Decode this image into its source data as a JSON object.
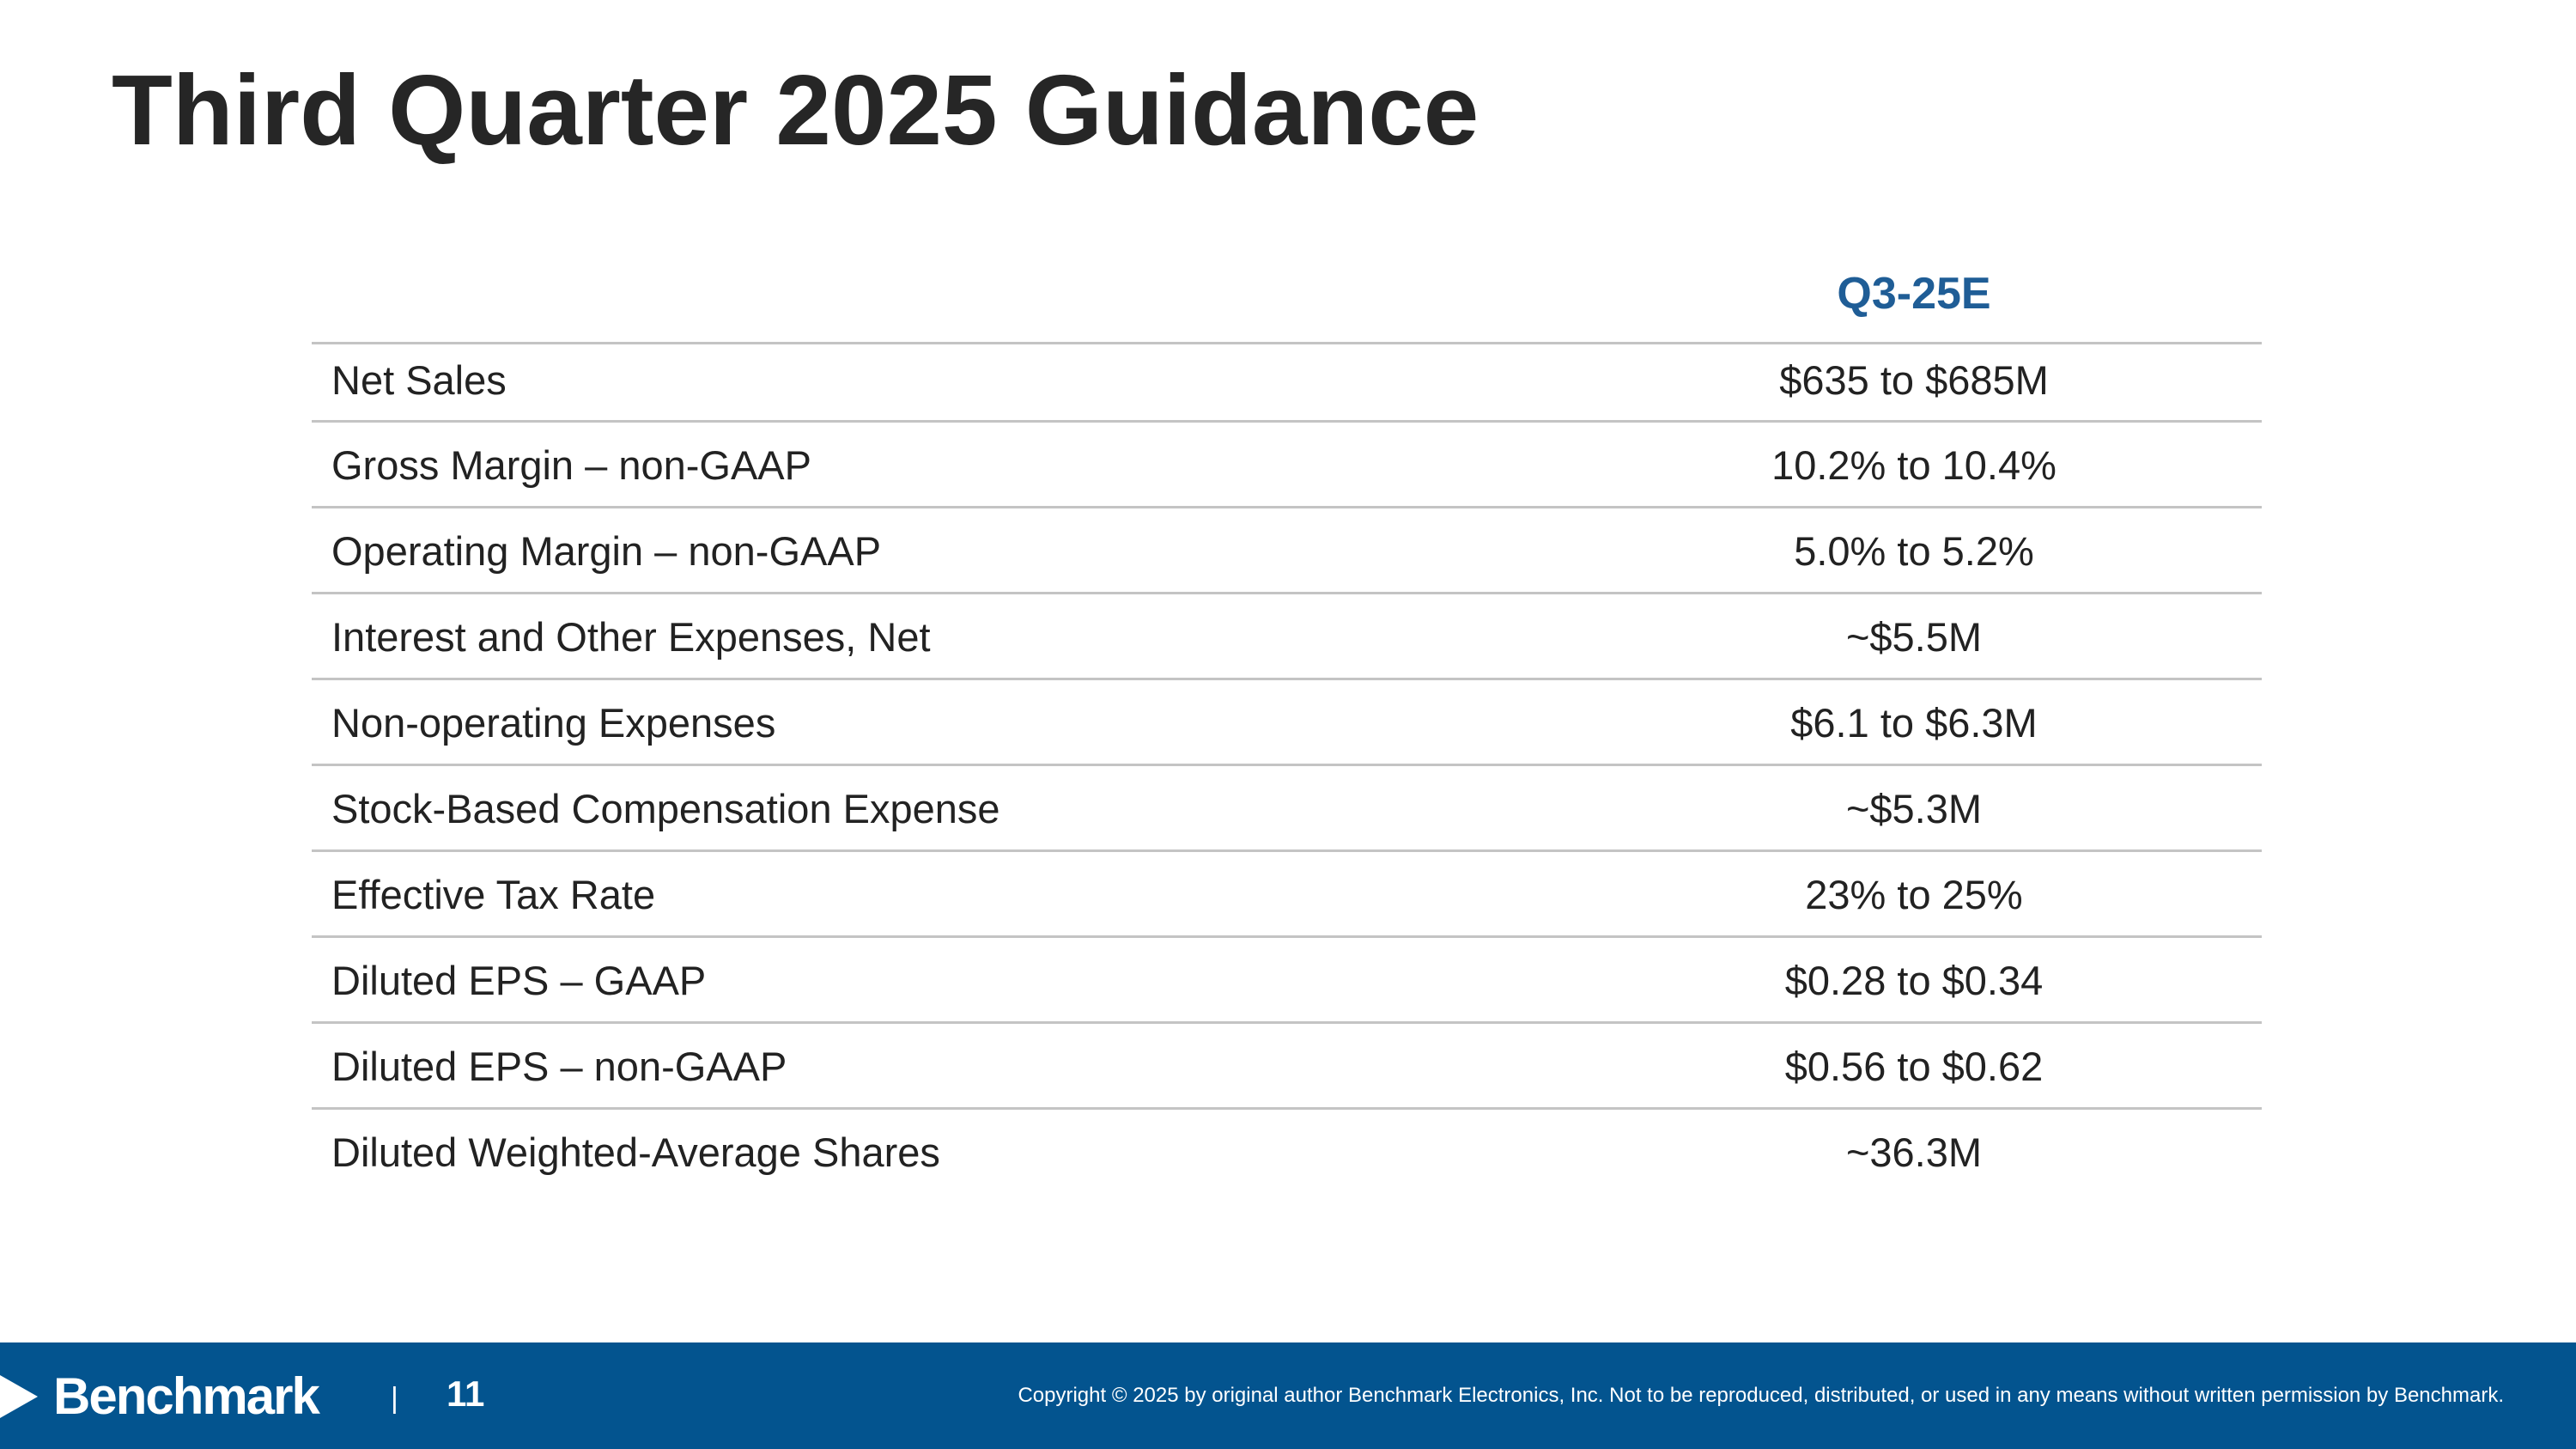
{
  "header": {
    "title": "Third Quarter 2025 Guidance"
  },
  "table": {
    "columns": [
      "Q3-25E"
    ],
    "rows": [
      [
        "Net Sales",
        "$635 to $685M"
      ],
      [
        "Gross Margin – non-GAAP",
        "10.2% to 10.4%"
      ],
      [
        "Operating Margin – non-GAAP",
        "5.0% to 5.2%"
      ],
      [
        "Interest and Other Expenses, Net",
        "~$5.5M"
      ],
      [
        "Non-operating Expenses",
        "$6.1 to $6.3M"
      ],
      [
        "Stock-Based Compensation Expense",
        "~$5.3M"
      ],
      [
        "Effective Tax Rate",
        "23% to 25%"
      ],
      [
        "Diluted EPS – GAAP",
        "$0.28 to $0.34"
      ],
      [
        "Diluted EPS – non-GAAP",
        "$0.56 to $0.62"
      ],
      [
        "Diluted Weighted-Average Shares",
        "~36.3M"
      ]
    ]
  },
  "footer": {
    "brand": "Benchmark",
    "separator": "|",
    "page": "11",
    "copyright": "Copyright © 2025 by original author Benchmark Electronics, Inc. Not to be reproduced, distributed, or used in any means without written permission by Benchmark."
  }
}
